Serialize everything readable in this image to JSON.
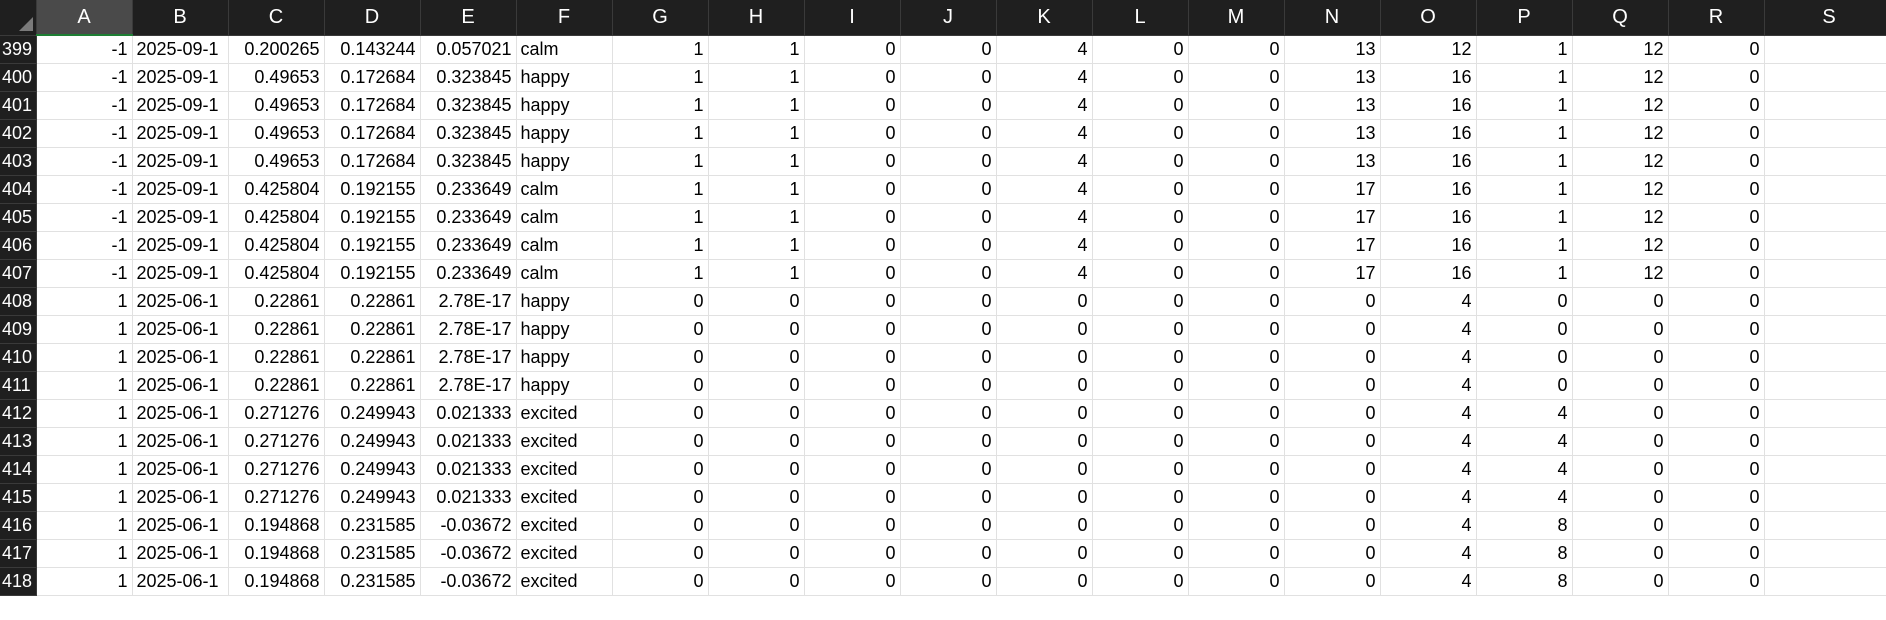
{
  "columns": [
    "A",
    "B",
    "C",
    "D",
    "E",
    "F",
    "G",
    "H",
    "I",
    "J",
    "K",
    "L",
    "M",
    "N",
    "O",
    "P",
    "Q",
    "R",
    "S"
  ],
  "selected_column": "A",
  "rows": [
    {
      "n": "399",
      "cells": [
        "-1",
        "2025-09-1",
        "0.200265",
        "0.143244",
        "0.057021",
        "calm",
        "1",
        "1",
        "0",
        "0",
        "4",
        "0",
        "0",
        "13",
        "12",
        "1",
        "12",
        "0",
        ""
      ]
    },
    {
      "n": "400",
      "cells": [
        "-1",
        "2025-09-1",
        "0.49653",
        "0.172684",
        "0.323845",
        "happy",
        "1",
        "1",
        "0",
        "0",
        "4",
        "0",
        "0",
        "13",
        "16",
        "1",
        "12",
        "0",
        ""
      ]
    },
    {
      "n": "401",
      "cells": [
        "-1",
        "2025-09-1",
        "0.49653",
        "0.172684",
        "0.323845",
        "happy",
        "1",
        "1",
        "0",
        "0",
        "4",
        "0",
        "0",
        "13",
        "16",
        "1",
        "12",
        "0",
        ""
      ]
    },
    {
      "n": "402",
      "cells": [
        "-1",
        "2025-09-1",
        "0.49653",
        "0.172684",
        "0.323845",
        "happy",
        "1",
        "1",
        "0",
        "0",
        "4",
        "0",
        "0",
        "13",
        "16",
        "1",
        "12",
        "0",
        ""
      ]
    },
    {
      "n": "403",
      "cells": [
        "-1",
        "2025-09-1",
        "0.49653",
        "0.172684",
        "0.323845",
        "happy",
        "1",
        "1",
        "0",
        "0",
        "4",
        "0",
        "0",
        "13",
        "16",
        "1",
        "12",
        "0",
        ""
      ]
    },
    {
      "n": "404",
      "cells": [
        "-1",
        "2025-09-1",
        "0.425804",
        "0.192155",
        "0.233649",
        "calm",
        "1",
        "1",
        "0",
        "0",
        "4",
        "0",
        "0",
        "17",
        "16",
        "1",
        "12",
        "0",
        ""
      ]
    },
    {
      "n": "405",
      "cells": [
        "-1",
        "2025-09-1",
        "0.425804",
        "0.192155",
        "0.233649",
        "calm",
        "1",
        "1",
        "0",
        "0",
        "4",
        "0",
        "0",
        "17",
        "16",
        "1",
        "12",
        "0",
        ""
      ]
    },
    {
      "n": "406",
      "cells": [
        "-1",
        "2025-09-1",
        "0.425804",
        "0.192155",
        "0.233649",
        "calm",
        "1",
        "1",
        "0",
        "0",
        "4",
        "0",
        "0",
        "17",
        "16",
        "1",
        "12",
        "0",
        ""
      ]
    },
    {
      "n": "407",
      "cells": [
        "-1",
        "2025-09-1",
        "0.425804",
        "0.192155",
        "0.233649",
        "calm",
        "1",
        "1",
        "0",
        "0",
        "4",
        "0",
        "0",
        "17",
        "16",
        "1",
        "12",
        "0",
        ""
      ]
    },
    {
      "n": "408",
      "cells": [
        "1",
        "2025-06-1",
        "0.22861",
        "0.22861",
        "2.78E-17",
        "happy",
        "0",
        "0",
        "0",
        "0",
        "0",
        "0",
        "0",
        "0",
        "4",
        "0",
        "0",
        "0",
        ""
      ]
    },
    {
      "n": "409",
      "cells": [
        "1",
        "2025-06-1",
        "0.22861",
        "0.22861",
        "2.78E-17",
        "happy",
        "0",
        "0",
        "0",
        "0",
        "0",
        "0",
        "0",
        "0",
        "4",
        "0",
        "0",
        "0",
        ""
      ]
    },
    {
      "n": "410",
      "cells": [
        "1",
        "2025-06-1",
        "0.22861",
        "0.22861",
        "2.78E-17",
        "happy",
        "0",
        "0",
        "0",
        "0",
        "0",
        "0",
        "0",
        "0",
        "4",
        "0",
        "0",
        "0",
        ""
      ]
    },
    {
      "n": "411",
      "cells": [
        "1",
        "2025-06-1",
        "0.22861",
        "0.22861",
        "2.78E-17",
        "happy",
        "0",
        "0",
        "0",
        "0",
        "0",
        "0",
        "0",
        "0",
        "4",
        "0",
        "0",
        "0",
        ""
      ]
    },
    {
      "n": "412",
      "cells": [
        "1",
        "2025-06-1",
        "0.271276",
        "0.249943",
        "0.021333",
        "excited",
        "0",
        "0",
        "0",
        "0",
        "0",
        "0",
        "0",
        "0",
        "4",
        "4",
        "0",
        "0",
        ""
      ]
    },
    {
      "n": "413",
      "cells": [
        "1",
        "2025-06-1",
        "0.271276",
        "0.249943",
        "0.021333",
        "excited",
        "0",
        "0",
        "0",
        "0",
        "0",
        "0",
        "0",
        "0",
        "4",
        "4",
        "0",
        "0",
        ""
      ]
    },
    {
      "n": "414",
      "cells": [
        "1",
        "2025-06-1",
        "0.271276",
        "0.249943",
        "0.021333",
        "excited",
        "0",
        "0",
        "0",
        "0",
        "0",
        "0",
        "0",
        "0",
        "4",
        "4",
        "0",
        "0",
        ""
      ]
    },
    {
      "n": "415",
      "cells": [
        "1",
        "2025-06-1",
        "0.271276",
        "0.249943",
        "0.021333",
        "excited",
        "0",
        "0",
        "0",
        "0",
        "0",
        "0",
        "0",
        "0",
        "4",
        "4",
        "0",
        "0",
        ""
      ]
    },
    {
      "n": "416",
      "cells": [
        "1",
        "2025-06-1",
        "0.194868",
        "0.231585",
        "-0.03672",
        "excited",
        "0",
        "0",
        "0",
        "0",
        "0",
        "0",
        "0",
        "0",
        "4",
        "8",
        "0",
        "0",
        ""
      ]
    },
    {
      "n": "417",
      "cells": [
        "1",
        "2025-06-1",
        "0.194868",
        "0.231585",
        "-0.03672",
        "excited",
        "0",
        "0",
        "0",
        "0",
        "0",
        "0",
        "0",
        "0",
        "4",
        "8",
        "0",
        "0",
        ""
      ]
    },
    {
      "n": "418",
      "cells": [
        "1",
        "2025-06-1",
        "0.194868",
        "0.231585",
        "-0.03672",
        "excited",
        "0",
        "0",
        "0",
        "0",
        "0",
        "0",
        "0",
        "0",
        "4",
        "8",
        "0",
        "0",
        ""
      ]
    }
  ],
  "text_columns": [
    "B",
    "F"
  ],
  "icons": {
    "select_all": "select-all-triangle-icon"
  }
}
